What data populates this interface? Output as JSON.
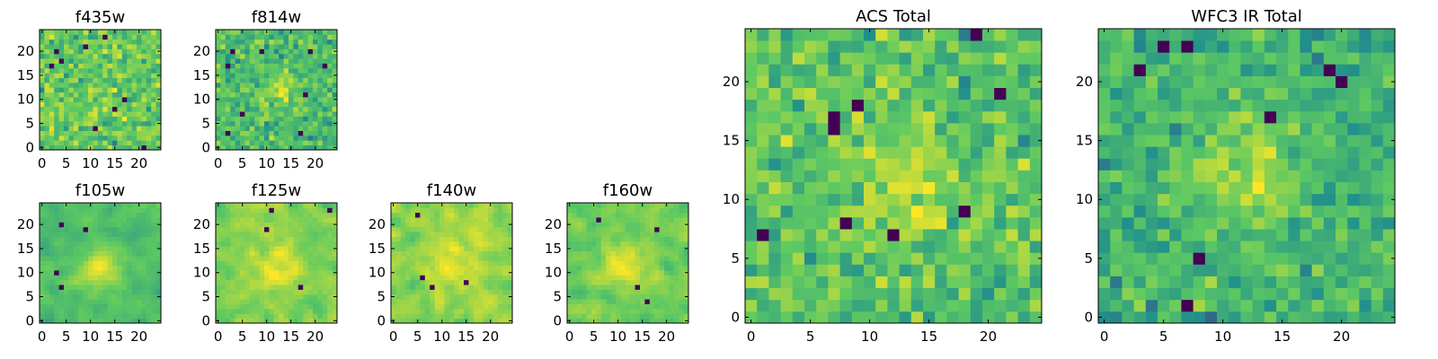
{
  "chart_data": [
    {
      "type": "heatmap",
      "title": "f435w",
      "grid_size": 25,
      "xlim": [
        0,
        24
      ],
      "ylim": [
        0,
        24
      ],
      "xticks": [
        0,
        5,
        10,
        15,
        20
      ],
      "yticks": [
        0,
        5,
        10,
        15,
        20
      ],
      "colormap": "viridis",
      "description_of_values": "noisy pixel image, no clear source",
      "noise_seed": 11,
      "source": {
        "x": 12,
        "y": 12,
        "amp": 0.05,
        "sigma": 3
      }
    },
    {
      "type": "heatmap",
      "title": "f814w",
      "grid_size": 25,
      "xlim": [
        0,
        24
      ],
      "ylim": [
        0,
        24
      ],
      "xticks": [
        0,
        5,
        10,
        15,
        20
      ],
      "yticks": [
        0,
        5,
        10,
        15,
        20
      ],
      "colormap": "viridis",
      "noise_seed": 23,
      "source": {
        "x": 13,
        "y": 12,
        "amp": 0.35,
        "sigma": 2.5
      }
    },
    {
      "type": "heatmap",
      "title": "f105w",
      "grid_size": 25,
      "xlim": [
        0,
        24
      ],
      "ylim": [
        0,
        24
      ],
      "xticks": [
        0,
        5,
        10,
        15,
        20
      ],
      "yticks": [
        0,
        5,
        10,
        15,
        20
      ],
      "colormap": "viridis",
      "noise_seed": 37,
      "smooth": true,
      "source": {
        "x": 12,
        "y": 11,
        "amp": 0.5,
        "sigma": 3
      }
    },
    {
      "type": "heatmap",
      "title": "f125w",
      "grid_size": 25,
      "xlim": [
        0,
        24
      ],
      "ylim": [
        0,
        24
      ],
      "xticks": [
        0,
        5,
        10,
        15,
        20
      ],
      "yticks": [
        0,
        5,
        10,
        15,
        20
      ],
      "colormap": "viridis",
      "noise_seed": 41,
      "smooth": true,
      "source": {
        "x": 12,
        "y": 11,
        "amp": 0.3,
        "sigma": 3
      }
    },
    {
      "type": "heatmap",
      "title": "f140w",
      "grid_size": 25,
      "xlim": [
        0,
        24
      ],
      "ylim": [
        0,
        24
      ],
      "xticks": [
        0,
        5,
        10,
        15,
        20
      ],
      "yticks": [
        0,
        5,
        10,
        15,
        20
      ],
      "colormap": "viridis",
      "noise_seed": 53,
      "smooth": true,
      "source": {
        "x": 12,
        "y": 12,
        "amp": 0.25,
        "sigma": 3
      }
    },
    {
      "type": "heatmap",
      "title": "f160w",
      "grid_size": 25,
      "xlim": [
        0,
        24
      ],
      "ylim": [
        0,
        24
      ],
      "xticks": [
        0,
        5,
        10,
        15,
        20
      ],
      "yticks": [
        0,
        5,
        10,
        15,
        20
      ],
      "colormap": "viridis",
      "noise_seed": 67,
      "smooth": true,
      "source": {
        "x": 11,
        "y": 12,
        "amp": 0.4,
        "sigma": 3
      }
    },
    {
      "type": "heatmap",
      "title": "ACS Total",
      "grid_size": 25,
      "xlim": [
        0,
        24
      ],
      "ylim": [
        0,
        24
      ],
      "xticks": [
        0,
        5,
        10,
        15,
        20
      ],
      "yticks": [
        0,
        5,
        10,
        15,
        20
      ],
      "colormap": "viridis",
      "noise_seed": 79,
      "source": {
        "x": 13,
        "y": 11,
        "amp": 0.3,
        "sigma": 3
      }
    },
    {
      "type": "heatmap",
      "title": "WFC3 IR Total",
      "grid_size": 25,
      "xlim": [
        0,
        24
      ],
      "ylim": [
        0,
        24
      ],
      "xticks": [
        0,
        5,
        10,
        15,
        20
      ],
      "yticks": [
        0,
        5,
        10,
        15,
        20
      ],
      "colormap": "viridis",
      "noise_seed": 97,
      "source": {
        "x": 12,
        "y": 12,
        "amp": 0.5,
        "sigma": 3
      }
    }
  ],
  "colors": {
    "colormap_stops": [
      "#440154",
      "#3b528b",
      "#21918c",
      "#5ec962",
      "#fde725"
    ],
    "frame": "#000000",
    "background": "#ffffff"
  }
}
